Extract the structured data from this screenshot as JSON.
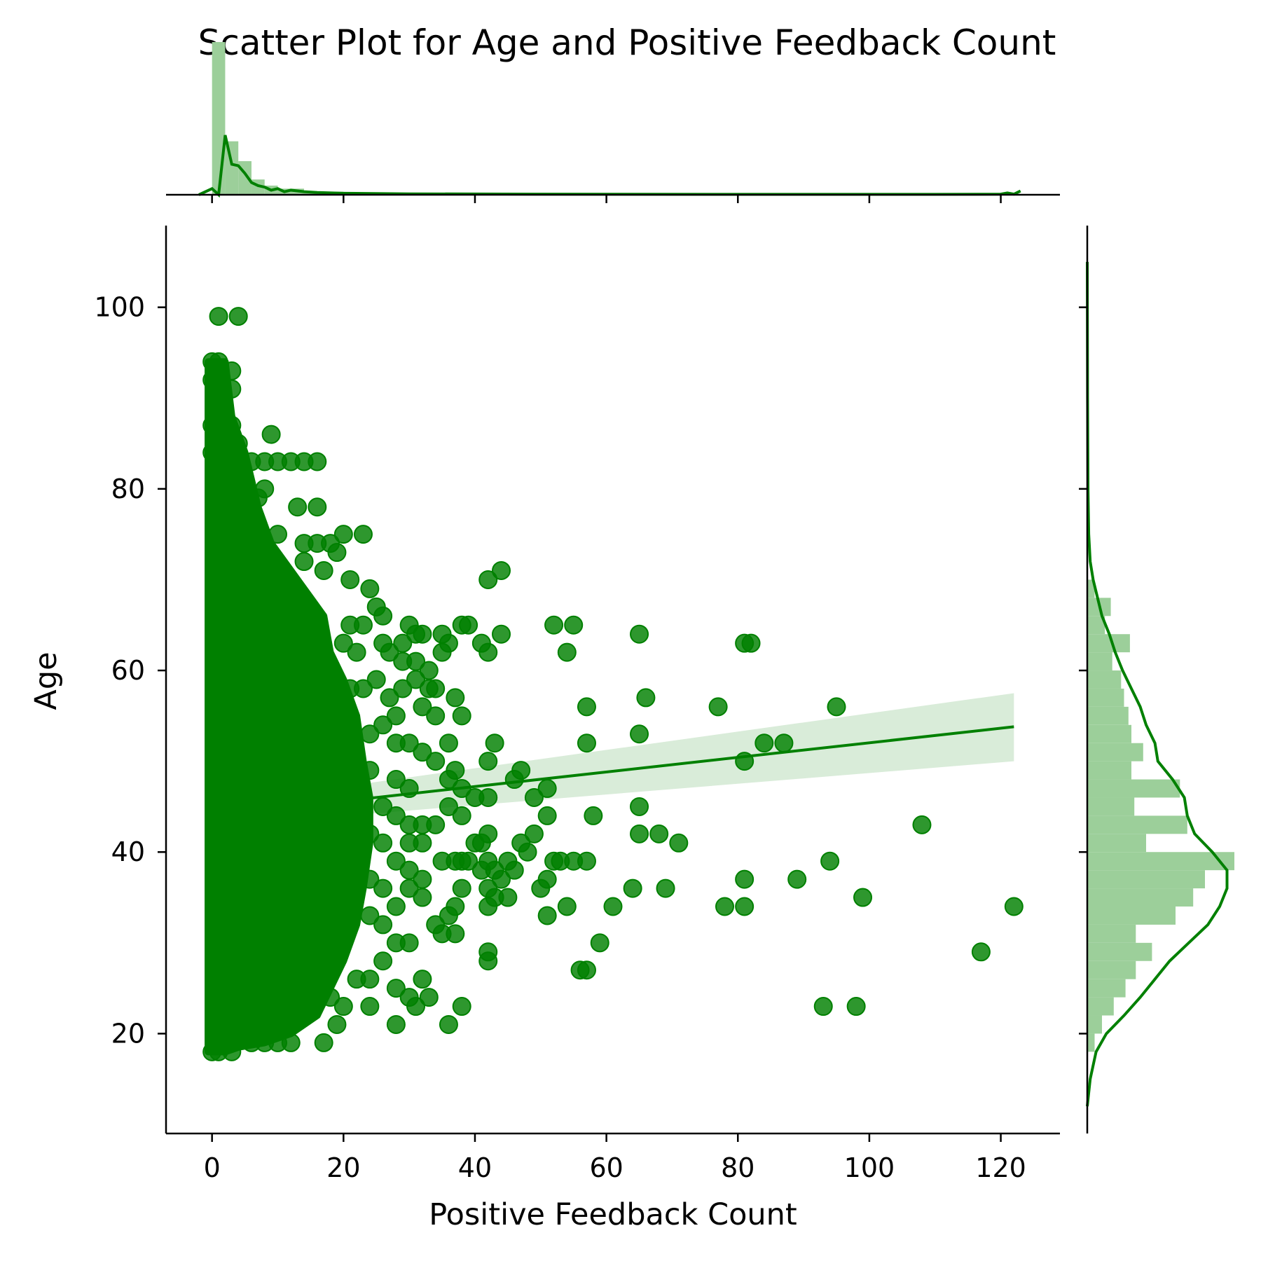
{
  "chart_data": {
    "type": "scatter",
    "title": "Scatter Plot for Age and Positive Feedback Count",
    "xlabel": "Positive Feedback Count",
    "ylabel": "Age",
    "xlim": [
      -7,
      129
    ],
    "ylim": [
      9,
      109
    ],
    "x_ticks": [
      0,
      20,
      40,
      60,
      80,
      100,
      120
    ],
    "y_ticks": [
      20,
      40,
      60,
      80,
      100
    ],
    "grid": false,
    "legend": "none",
    "color": "#008000",
    "fill_color": "#9ccf9a",
    "band_color": "#d9ecd9",
    "points": [
      [
        1,
        99
      ],
      [
        4,
        99
      ],
      [
        0,
        94
      ],
      [
        1,
        94
      ],
      [
        0,
        92
      ],
      [
        3,
        93
      ],
      [
        3,
        91
      ],
      [
        1,
        89
      ],
      [
        0,
        87
      ],
      [
        3,
        87
      ],
      [
        4,
        85
      ],
      [
        0,
        84
      ],
      [
        1,
        83
      ],
      [
        2,
        83
      ],
      [
        6,
        83
      ],
      [
        8,
        83
      ],
      [
        10,
        83
      ],
      [
        12,
        83
      ],
      [
        14,
        83
      ],
      [
        16,
        83
      ],
      [
        5,
        80
      ],
      [
        7,
        79
      ],
      [
        8,
        80
      ],
      [
        6,
        77
      ],
      [
        9,
        86
      ],
      [
        13,
        78
      ],
      [
        16,
        78
      ],
      [
        10,
        75
      ],
      [
        14,
        74
      ],
      [
        16,
        74
      ],
      [
        18,
        74
      ],
      [
        20,
        75
      ],
      [
        23,
        75
      ],
      [
        14,
        72
      ],
      [
        17,
        71
      ],
      [
        19,
        73
      ],
      [
        21,
        70
      ],
      [
        24,
        69
      ],
      [
        25,
        67
      ],
      [
        26,
        66
      ],
      [
        21,
        65
      ],
      [
        23,
        65
      ],
      [
        20,
        63
      ],
      [
        22,
        62
      ],
      [
        26,
        63
      ],
      [
        27,
        62
      ],
      [
        29,
        63
      ],
      [
        30,
        65
      ],
      [
        31,
        64
      ],
      [
        32,
        64
      ],
      [
        29,
        61
      ],
      [
        31,
        61
      ],
      [
        33,
        60
      ],
      [
        21,
        58
      ],
      [
        23,
        58
      ],
      [
        25,
        59
      ],
      [
        27,
        57
      ],
      [
        29,
        58
      ],
      [
        31,
        59
      ],
      [
        33,
        58
      ],
      [
        32,
        56
      ],
      [
        34,
        55
      ],
      [
        28,
        55
      ],
      [
        24,
        53
      ],
      [
        26,
        54
      ],
      [
        28,
        52
      ],
      [
        30,
        52
      ],
      [
        32,
        51
      ],
      [
        24,
        49
      ],
      [
        28,
        48
      ],
      [
        30,
        47
      ],
      [
        26,
        45
      ],
      [
        28,
        44
      ],
      [
        30,
        43
      ],
      [
        32,
        43
      ],
      [
        24,
        42
      ],
      [
        26,
        41
      ],
      [
        30,
        41
      ],
      [
        32,
        41
      ],
      [
        28,
        39
      ],
      [
        30,
        38
      ],
      [
        32,
        37
      ],
      [
        24,
        37
      ],
      [
        26,
        36
      ],
      [
        30,
        36
      ],
      [
        32,
        35
      ],
      [
        28,
        34
      ],
      [
        24,
        33
      ],
      [
        26,
        32
      ],
      [
        28,
        30
      ],
      [
        30,
        30
      ],
      [
        26,
        28
      ],
      [
        24,
        26
      ],
      [
        28,
        25
      ],
      [
        30,
        24
      ],
      [
        24,
        23
      ],
      [
        28,
        21
      ],
      [
        31,
        23
      ],
      [
        33,
        24
      ],
      [
        32,
        26
      ],
      [
        18,
        24
      ],
      [
        20,
        23
      ],
      [
        22,
        26
      ],
      [
        17,
        19
      ],
      [
        19,
        21
      ],
      [
        10,
        19
      ],
      [
        12,
        19
      ],
      [
        8,
        19
      ],
      [
        6,
        19
      ],
      [
        5,
        20
      ],
      [
        3,
        18
      ],
      [
        1,
        18
      ],
      [
        0,
        18
      ],
      [
        42,
        70
      ],
      [
        44,
        71
      ],
      [
        35,
        64
      ],
      [
        36,
        63
      ],
      [
        38,
        65
      ],
      [
        39,
        65
      ],
      [
        41,
        63
      ],
      [
        42,
        62
      ],
      [
        44,
        64
      ],
      [
        35,
        62
      ],
      [
        34,
        58
      ],
      [
        37,
        57
      ],
      [
        38,
        55
      ],
      [
        36,
        52
      ],
      [
        34,
        50
      ],
      [
        43,
        52
      ],
      [
        42,
        50
      ],
      [
        37,
        49
      ],
      [
        36,
        48
      ],
      [
        38,
        47
      ],
      [
        40,
        46
      ],
      [
        42,
        46
      ],
      [
        46,
        48
      ],
      [
        47,
        49
      ],
      [
        49,
        46
      ],
      [
        51,
        47
      ],
      [
        36,
        45
      ],
      [
        38,
        44
      ],
      [
        34,
        43
      ],
      [
        42,
        42
      ],
      [
        41,
        41
      ],
      [
        40,
        41
      ],
      [
        38,
        39
      ],
      [
        41,
        38
      ],
      [
        42,
        39
      ],
      [
        43,
        38
      ],
      [
        45,
        39
      ],
      [
        46,
        38
      ],
      [
        47,
        41
      ],
      [
        48,
        40
      ],
      [
        49,
        42
      ],
      [
        50,
        36
      ],
      [
        51,
        37
      ],
      [
        51,
        44
      ],
      [
        52,
        39
      ],
      [
        53,
        39
      ],
      [
        55,
        39
      ],
      [
        57,
        39
      ],
      [
        54,
        34
      ],
      [
        51,
        33
      ],
      [
        56,
        27
      ],
      [
        57,
        27
      ],
      [
        59,
        30
      ],
      [
        61,
        34
      ],
      [
        64,
        36
      ],
      [
        69,
        36
      ],
      [
        58,
        44
      ],
      [
        65,
        42
      ],
      [
        68,
        42
      ],
      [
        71,
        41
      ],
      [
        65,
        45
      ],
      [
        66,
        57
      ],
      [
        65,
        53
      ],
      [
        57,
        56
      ],
      [
        57,
        52
      ],
      [
        52,
        65
      ],
      [
        55,
        65
      ],
      [
        54,
        62
      ],
      [
        65,
        64
      ],
      [
        77,
        56
      ],
      [
        81,
        63
      ],
      [
        82,
        63
      ],
      [
        81,
        50
      ],
      [
        84,
        52
      ],
      [
        87,
        52
      ],
      [
        95,
        56
      ],
      [
        108,
        43
      ],
      [
        94,
        39
      ],
      [
        89,
        37
      ],
      [
        81,
        37
      ],
      [
        78,
        34
      ],
      [
        81,
        34
      ],
      [
        99,
        35
      ],
      [
        122,
        34
      ],
      [
        117,
        29
      ],
      [
        93,
        23
      ],
      [
        98,
        23
      ],
      [
        36,
        21
      ],
      [
        38,
        23
      ],
      [
        35,
        31
      ],
      [
        37,
        31
      ],
      [
        34,
        32
      ],
      [
        36,
        33
      ],
      [
        37,
        34
      ],
      [
        38,
        36
      ],
      [
        37,
        39
      ],
      [
        35,
        39
      ],
      [
        42,
        28
      ],
      [
        42,
        29
      ],
      [
        42,
        34
      ],
      [
        42,
        36
      ],
      [
        43,
        35
      ],
      [
        45,
        35
      ],
      [
        39,
        39
      ],
      [
        44,
        37
      ]
    ],
    "regression": {
      "x_range": [
        0,
        122
      ],
      "start": 44.0,
      "end": 53.8,
      "ci_start": [
        42.8,
        45.2
      ],
      "ci_end": [
        50.0,
        57.5
      ]
    },
    "x_marginal": {
      "hist_bins": [
        [
          0,
          2,
          1.0
        ],
        [
          2,
          4,
          0.35
        ],
        [
          4,
          6,
          0.22
        ],
        [
          6,
          8,
          0.1
        ],
        [
          8,
          10,
          0.06
        ],
        [
          10,
          14,
          0.04
        ],
        [
          14,
          20,
          0.02
        ],
        [
          20,
          40,
          0.01
        ],
        [
          40,
          123,
          0.004
        ]
      ],
      "kde": [
        [
          -2,
          0
        ],
        [
          0,
          0.04
        ],
        [
          1,
          0
        ],
        [
          2,
          0.39
        ],
        [
          3,
          0.2
        ],
        [
          4,
          0.19
        ],
        [
          5,
          0.14
        ],
        [
          6,
          0.08
        ],
        [
          7,
          0.06
        ],
        [
          8,
          0.05
        ],
        [
          9,
          0.03
        ],
        [
          10,
          0.04
        ],
        [
          11,
          0.02
        ],
        [
          12,
          0.03
        ],
        [
          14,
          0.02
        ],
        [
          16,
          0.015
        ],
        [
          20,
          0.01
        ],
        [
          30,
          0.006
        ],
        [
          50,
          0.004
        ],
        [
          80,
          0.003
        ],
        [
          110,
          0.003
        ],
        [
          120,
          0.004
        ],
        [
          121,
          0.012
        ],
        [
          122,
          0.004
        ],
        [
          123,
          0.025
        ]
      ]
    },
    "y_marginal": {
      "hist_bins": [
        [
          18,
          20,
          0.05
        ],
        [
          20,
          22,
          0.1
        ],
        [
          22,
          24,
          0.18
        ],
        [
          24,
          26,
          0.26
        ],
        [
          26,
          28,
          0.33
        ],
        [
          28,
          30,
          0.44
        ],
        [
          30,
          32,
          0.33
        ],
        [
          32,
          34,
          0.6
        ],
        [
          34,
          36,
          0.72
        ],
        [
          36,
          38,
          0.8
        ],
        [
          38,
          40,
          1.0
        ],
        [
          40,
          42,
          0.4
        ],
        [
          42,
          44,
          0.68
        ],
        [
          44,
          46,
          0.32
        ],
        [
          46,
          48,
          0.63
        ],
        [
          48,
          50,
          0.3
        ],
        [
          50,
          52,
          0.38
        ],
        [
          52,
          54,
          0.3
        ],
        [
          54,
          56,
          0.28
        ],
        [
          56,
          58,
          0.25
        ],
        [
          58,
          60,
          0.23
        ],
        [
          60,
          62,
          0.17
        ],
        [
          62,
          64,
          0.29
        ],
        [
          64,
          66,
          0.12
        ],
        [
          66,
          68,
          0.16
        ],
        [
          68,
          70,
          0.05
        ]
      ],
      "kde": [
        [
          12,
          0.0
        ],
        [
          15,
          0.02
        ],
        [
          18,
          0.06
        ],
        [
          20,
          0.13
        ],
        [
          22,
          0.25
        ],
        [
          24,
          0.36
        ],
        [
          26,
          0.46
        ],
        [
          28,
          0.56
        ],
        [
          30,
          0.69
        ],
        [
          32,
          0.82
        ],
        [
          34,
          0.9
        ],
        [
          36,
          0.95
        ],
        [
          38,
          0.95
        ],
        [
          40,
          0.85
        ],
        [
          42,
          0.73
        ],
        [
          44,
          0.68
        ],
        [
          46,
          0.66
        ],
        [
          48,
          0.58
        ],
        [
          50,
          0.48
        ],
        [
          52,
          0.46
        ],
        [
          54,
          0.4
        ],
        [
          56,
          0.36
        ],
        [
          58,
          0.3
        ],
        [
          60,
          0.24
        ],
        [
          62,
          0.19
        ],
        [
          64,
          0.15
        ],
        [
          66,
          0.1
        ],
        [
          68,
          0.07
        ],
        [
          70,
          0.04
        ],
        [
          72,
          0.02
        ],
        [
          75,
          0.01
        ],
        [
          80,
          0.005
        ],
        [
          90,
          0.002
        ],
        [
          105,
          0
        ]
      ]
    }
  }
}
